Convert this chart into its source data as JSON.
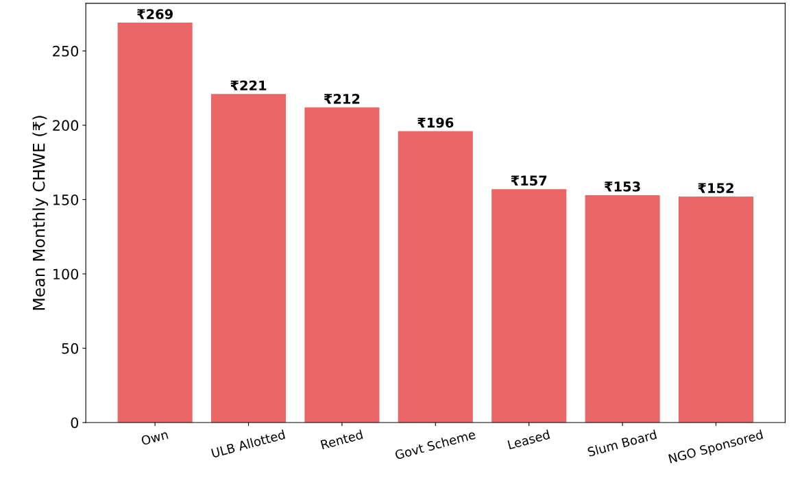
{
  "chart_data": {
    "type": "bar",
    "ylabel": "Mean Monthly CHWE (₹)",
    "categories": [
      "Own",
      "ULB Allotted",
      "Rented",
      "Govt Scheme",
      "Leased",
      "Slum Board",
      "NGO Sponsored"
    ],
    "values": [
      269,
      221,
      212,
      196,
      157,
      153,
      152
    ],
    "value_labels": [
      "₹269",
      "₹221",
      "₹212",
      "₹196",
      "₹157",
      "₹153",
      "₹152"
    ],
    "color": "#eb6666",
    "ylim": [
      0,
      282
    ],
    "yticks": [
      0,
      50,
      100,
      150,
      200,
      250
    ],
    "grid": false
  }
}
